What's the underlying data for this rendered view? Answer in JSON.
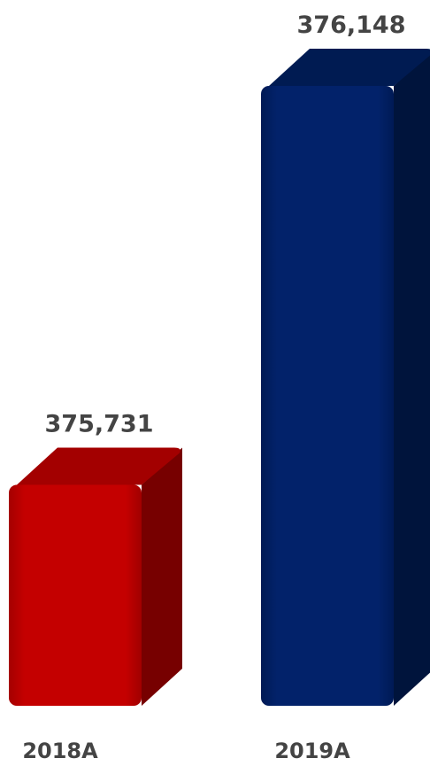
{
  "chart_data": {
    "type": "bar",
    "categories": [
      "2018A",
      "2019A"
    ],
    "values": [
      375731,
      376148
    ],
    "value_labels": [
      "375,731",
      "376,148"
    ],
    "colors": [
      "#c00000",
      "#002060"
    ],
    "legend": "none",
    "grid": false
  }
}
